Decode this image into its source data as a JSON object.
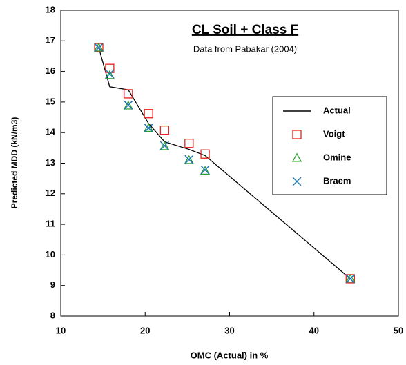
{
  "chart_data": {
    "type": "line",
    "title": "CL Soil + Class F",
    "subtitle": "Data from Pabakar (2004)",
    "x_label": "OMC (Actual) in %",
    "y_label": "Predicted MDD (kN/m3)",
    "xlim": [
      10,
      50
    ],
    "xticks": [
      10,
      20,
      30,
      40,
      50
    ],
    "ylim": [
      8,
      18
    ],
    "yticks": [
      8,
      9,
      10,
      11,
      12,
      13,
      14,
      15,
      16,
      17,
      18
    ],
    "grid": false,
    "legend": "right",
    "series": [
      {
        "name": "Actual",
        "color": "#000000",
        "marker": "line",
        "x": [
          14.5,
          15.8,
          18,
          20.4,
          22.3,
          25.2,
          27.1,
          44.3
        ],
        "values": [
          16.78,
          15.5,
          15.4,
          14.3,
          13.7,
          13.45,
          13.25,
          9.22
        ]
      },
      {
        "name": "Voigt",
        "color": "#e8231f",
        "marker": "square",
        "x": [
          14.5,
          15.8,
          18,
          20.4,
          22.3,
          25.2,
          27.1,
          44.3
        ],
        "values": [
          16.78,
          16.1,
          15.27,
          14.62,
          14.08,
          13.65,
          13.3,
          9.22
        ]
      },
      {
        "name": "Omine",
        "color": "#2ca02c",
        "marker": "triangle",
        "x": [
          14.5,
          15.8,
          18,
          20.4,
          22.3,
          25.2,
          27.1,
          44.3
        ],
        "values": [
          16.78,
          15.88,
          14.88,
          14.15,
          13.55,
          13.1,
          12.75,
          9.22
        ]
      },
      {
        "name": "Braem",
        "color": "#1f77b4",
        "marker": "x",
        "x": [
          14.5,
          15.8,
          18,
          20.4,
          22.3,
          25.2,
          27.1,
          44.3
        ],
        "values": [
          16.78,
          15.92,
          14.9,
          14.15,
          13.57,
          13.12,
          12.78,
          9.22
        ]
      }
    ]
  }
}
